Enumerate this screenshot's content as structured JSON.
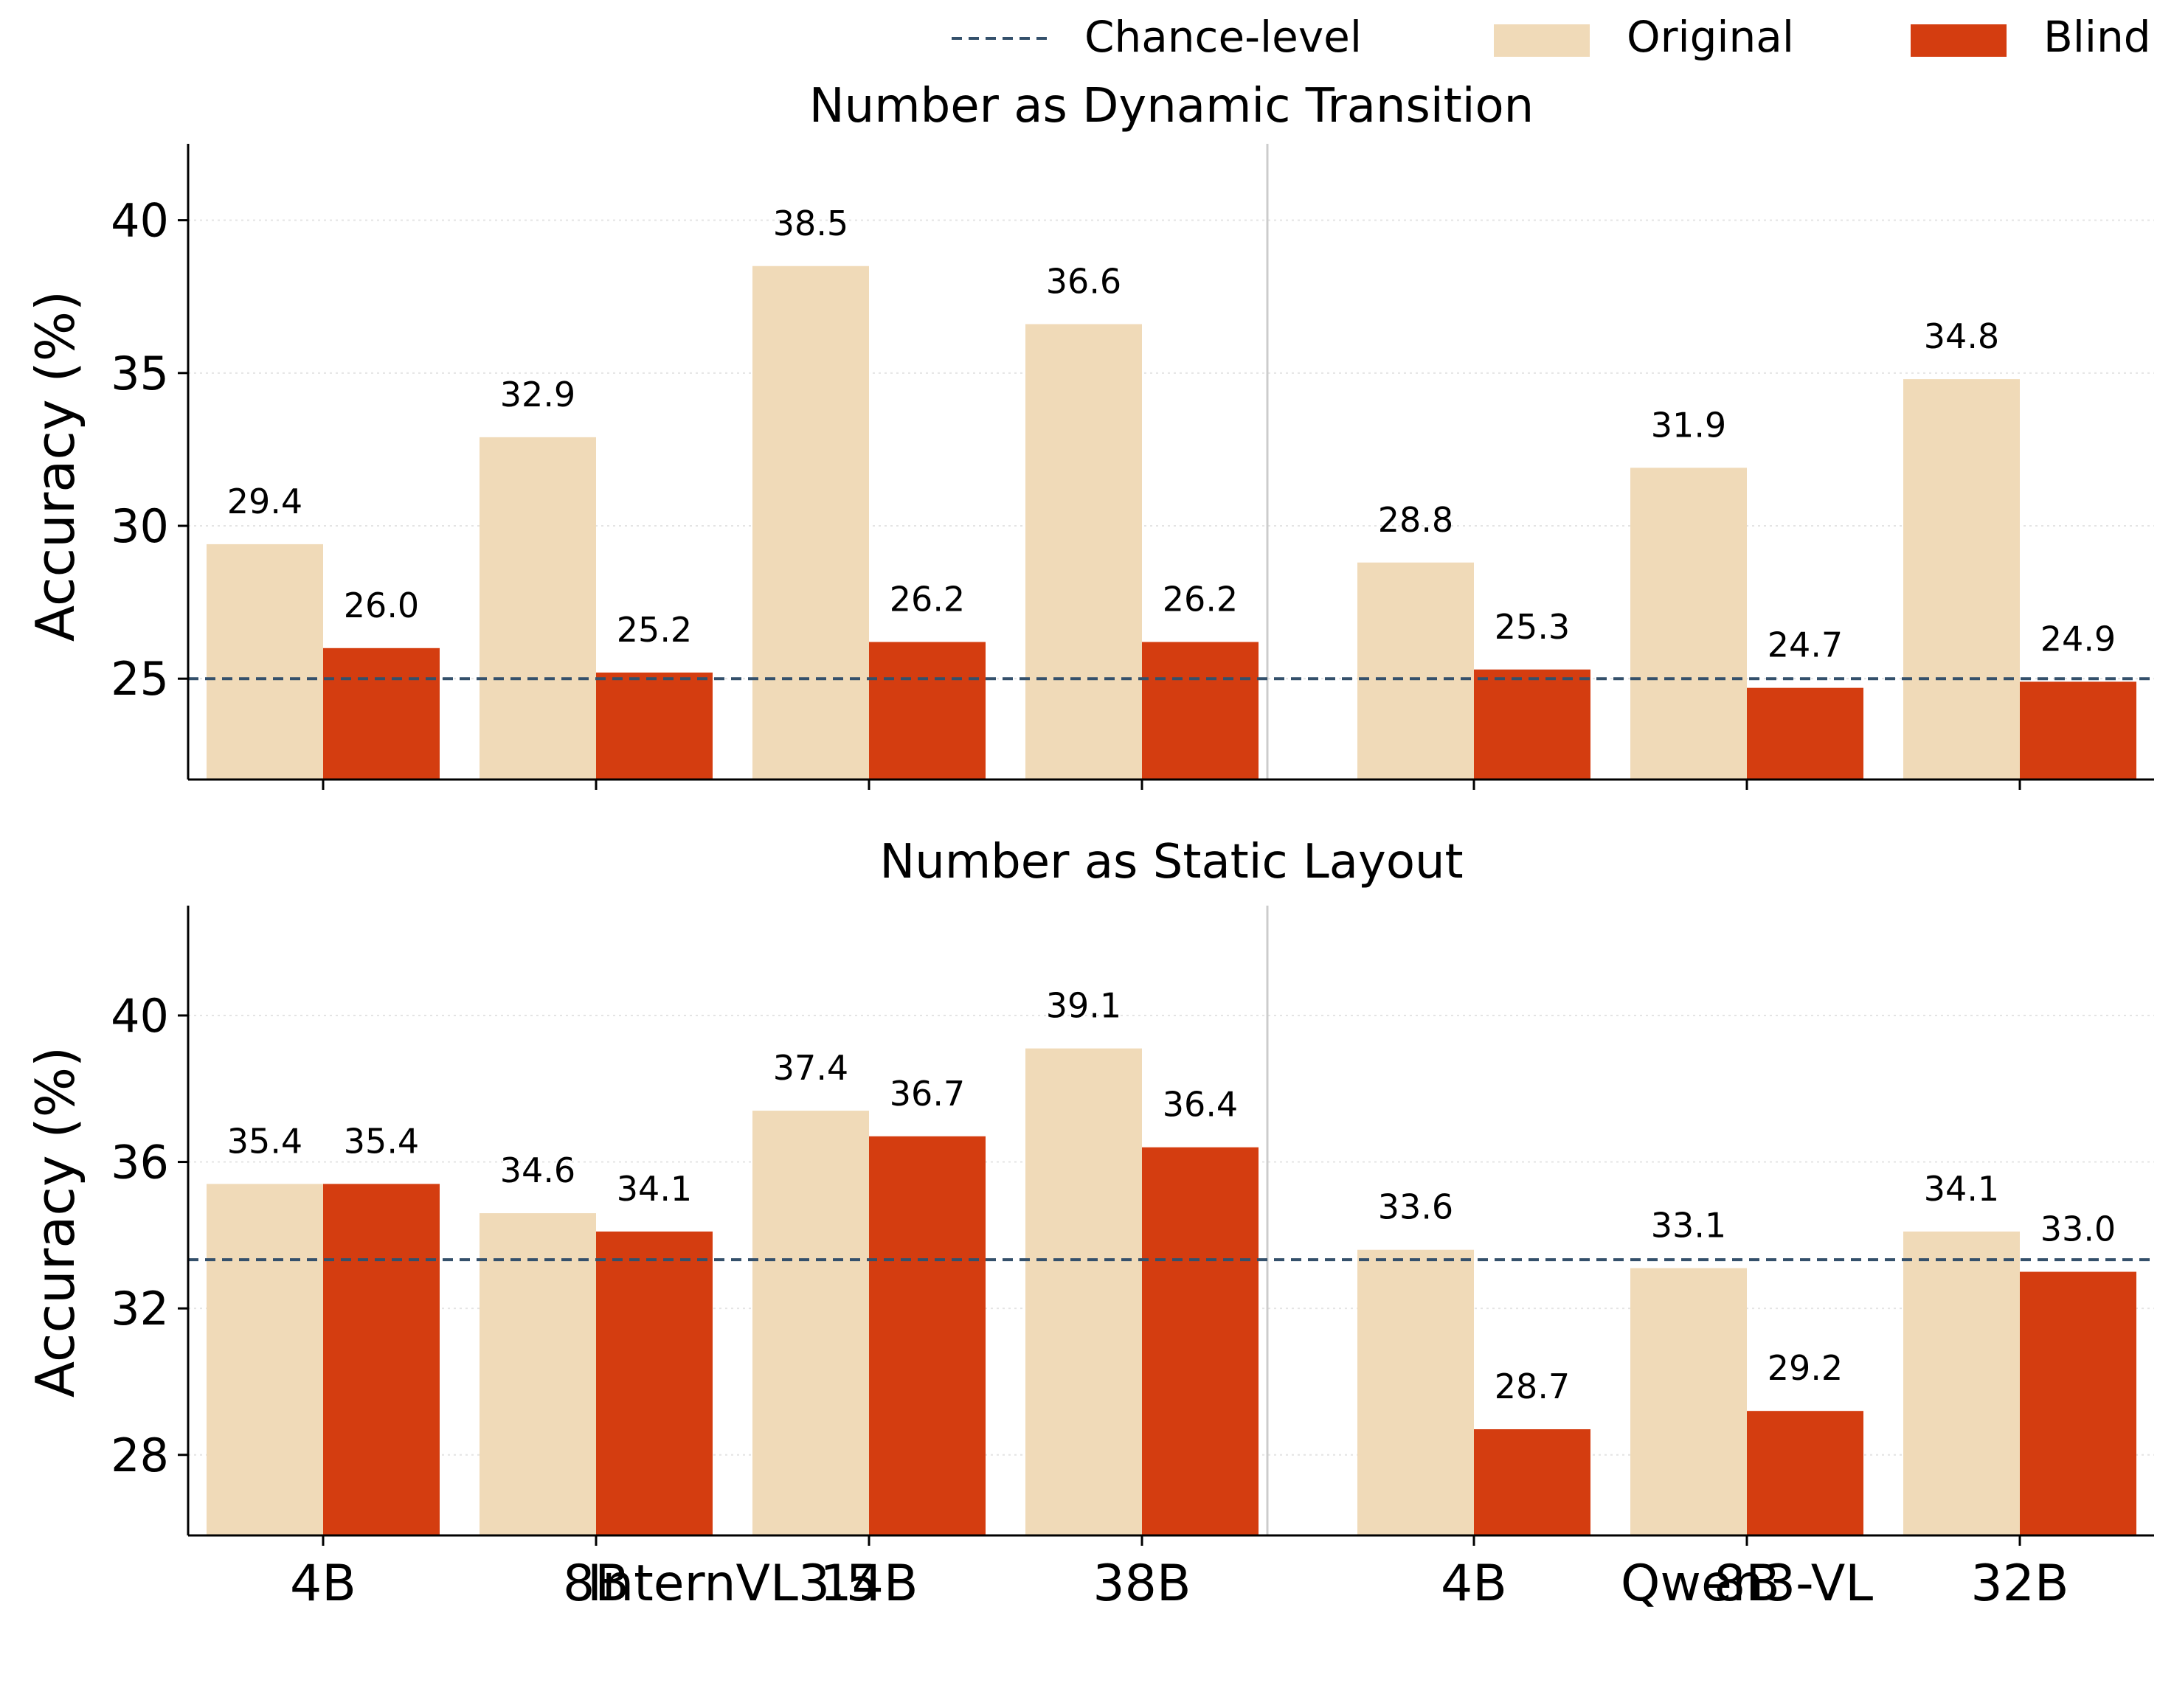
{
  "legend": {
    "chance": {
      "label": "Chance-level",
      "color": "#34506b"
    },
    "original": {
      "label": "Original",
      "color": "#f0dab8"
    },
    "blind": {
      "label": "Blind",
      "color": "#d43d10"
    }
  },
  "groups": [
    {
      "label": "InternVL3.5",
      "models": [
        "4B",
        "8B",
        "14B",
        "38B"
      ]
    },
    {
      "label": "Qwen3-VL",
      "models": [
        "4B",
        "8B",
        "32B"
      ]
    }
  ],
  "chart_data": [
    {
      "type": "bar",
      "title": "Number as Dynamic Transition",
      "ylabel": "Accuracy (%)",
      "xlabel": "",
      "categories": [
        "4B",
        "8B",
        "14B",
        "38B",
        "4B",
        "8B",
        "32B"
      ],
      "series": [
        {
          "name": "Original",
          "values": [
            29.4,
            32.9,
            38.5,
            36.6,
            28.8,
            31.9,
            34.8
          ]
        },
        {
          "name": "Blind",
          "values": [
            26.0,
            25.2,
            26.2,
            26.2,
            25.3,
            24.7,
            24.9
          ]
        }
      ],
      "chance_level": 25,
      "ylim": [
        21.7,
        42.5
      ],
      "yticks": [
        25,
        30,
        35,
        40
      ],
      "grid": "y-dotted",
      "legend_position": "top"
    },
    {
      "type": "bar",
      "title": "Number as Static Layout",
      "ylabel": "Accuracy (%)",
      "xlabel": "",
      "categories": [
        "4B",
        "8B",
        "14B",
        "38B",
        "4B",
        "8B",
        "32B"
      ],
      "series": [
        {
          "name": "Original",
          "values": [
            35.4,
            34.6,
            37.4,
            39.1,
            33.6,
            33.1,
            34.1
          ]
        },
        {
          "name": "Blind",
          "values": [
            35.4,
            34.1,
            36.7,
            36.4,
            28.7,
            29.2,
            33.0
          ]
        }
      ],
      "chance_level": 33.33,
      "ylim": [
        25.8,
        43.0
      ],
      "yticks": [
        28,
        32,
        36,
        40
      ],
      "grid": "y-dotted",
      "legend_position": "top"
    }
  ]
}
